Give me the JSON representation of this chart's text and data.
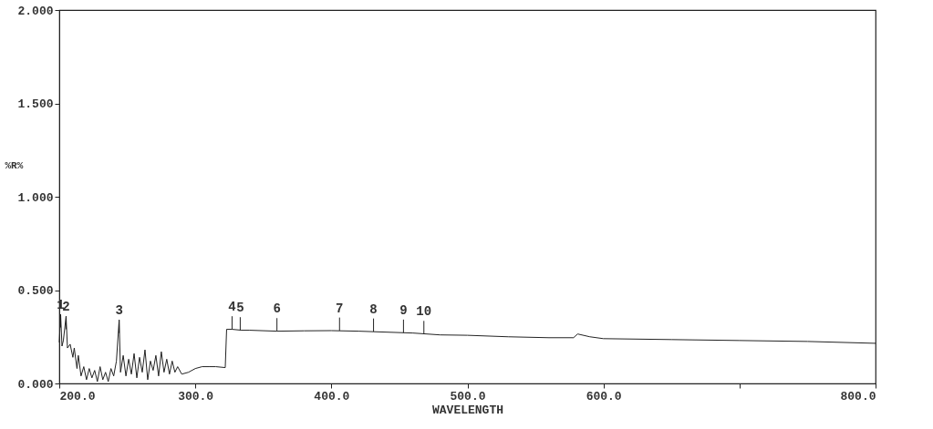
{
  "chart_data": {
    "type": "line",
    "xlabel": "WAVELENGTH",
    "ylabel": "%R%",
    "x": [
      200,
      201,
      202,
      203,
      205,
      206,
      208,
      210,
      211,
      213,
      214,
      216,
      218,
      220,
      222,
      224,
      226,
      228,
      230,
      232,
      234,
      236,
      238,
      240,
      242,
      244,
      245,
      247,
      249,
      251,
      253,
      255,
      257,
      259,
      261,
      263,
      265,
      267,
      269,
      271,
      273,
      275,
      277,
      279,
      281,
      283,
      285,
      287,
      290,
      295,
      300,
      305,
      310,
      315,
      322,
      323,
      327,
      334,
      340,
      360,
      380,
      400,
      420,
      440,
      460,
      480,
      500,
      530,
      560,
      578,
      581,
      590,
      600,
      650,
      700,
      750,
      800
    ],
    "series": [
      {
        "color": "#222222",
        "values": [
          0.22,
          0.37,
          0.2,
          0.23,
          0.36,
          0.19,
          0.21,
          0.14,
          0.19,
          0.08,
          0.15,
          0.04,
          0.09,
          0.02,
          0.08,
          0.03,
          0.07,
          0.01,
          0.09,
          0.02,
          0.06,
          0.01,
          0.08,
          0.04,
          0.12,
          0.34,
          0.06,
          0.15,
          0.04,
          0.13,
          0.05,
          0.16,
          0.03,
          0.14,
          0.06,
          0.18,
          0.02,
          0.12,
          0.07,
          0.15,
          0.04,
          0.17,
          0.06,
          0.13,
          0.05,
          0.12,
          0.06,
          0.09,
          0.05,
          0.06,
          0.08,
          0.09,
          0.09,
          0.09,
          0.085,
          0.29,
          0.29,
          0.285,
          0.285,
          0.28,
          0.282,
          0.283,
          0.28,
          0.275,
          0.27,
          0.26,
          0.258,
          0.25,
          0.245,
          0.245,
          0.265,
          0.25,
          0.24,
          0.235,
          0.23,
          0.225,
          0.215
        ]
      }
    ],
    "xlim": [
      200,
      800
    ],
    "xticks": [
      {
        "value": 200,
        "label": "200.0"
      },
      {
        "value": 300,
        "label": "300.0"
      },
      {
        "value": 400,
        "label": "400.0"
      },
      {
        "value": 500,
        "label": "500.0"
      },
      {
        "value": 600,
        "label": "600.0"
      },
      {
        "value": 700,
        "label": null
      },
      {
        "value": 800,
        "label": "800.0"
      }
    ],
    "ylim": [
      0,
      2
    ],
    "yticks": [
      {
        "value": 0,
        "label": "0.000"
      },
      {
        "value": 0.5,
        "label": "0.500"
      },
      {
        "value": 1,
        "label": "1.000"
      },
      {
        "value": 1.5,
        "label": "1.500"
      },
      {
        "value": 2,
        "label": "2.000"
      }
    ],
    "annotations": [
      {
        "text": "1",
        "x": 201,
        "y": 0.3
      },
      {
        "text": "2",
        "x": 205,
        "y": 0.29
      },
      {
        "text": "3",
        "x": 244,
        "y": 0.27
      },
      {
        "text": "4",
        "x": 327,
        "y": 0.29
      },
      {
        "text": "5",
        "x": 333,
        "y": 0.285
      },
      {
        "text": "6",
        "x": 360,
        "y": 0.28
      },
      {
        "text": "7",
        "x": 406,
        "y": 0.283
      },
      {
        "text": "8",
        "x": 431,
        "y": 0.278
      },
      {
        "text": "9",
        "x": 453,
        "y": 0.272
      },
      {
        "text": "10",
        "x": 468,
        "y": 0.265
      }
    ],
    "grid": false,
    "marker": "none",
    "line_style": "solid"
  }
}
